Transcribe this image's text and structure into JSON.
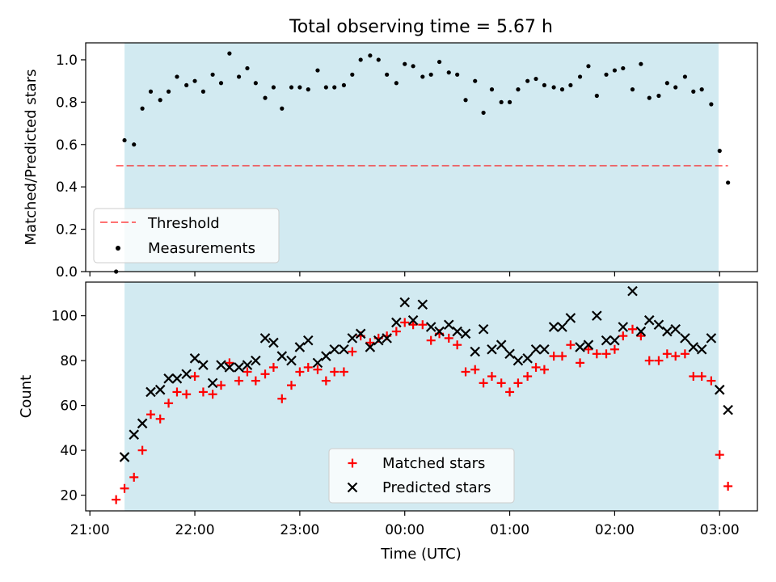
{
  "figure": {
    "title": "Total observing time = 5.67 h"
  },
  "colors": {
    "shade": "#add8e6",
    "threshold": "#ff0000",
    "measurement": "#000000",
    "matched": "#ff0000",
    "predicted": "#000000"
  },
  "chart_data": [
    {
      "type": "scatter",
      "name": "ratio-panel",
      "ylabel": "Matched/Predicted stars",
      "ylim": [
        0,
        1.08
      ],
      "yticks": [
        0.0,
        0.2,
        0.4,
        0.6,
        0.8,
        1.0
      ],
      "ytick_labels": [
        "0.0",
        "0.2",
        "0.4",
        "0.6",
        "0.8",
        "1.0"
      ],
      "xlim_hours": [
        20.96,
        27.36
      ],
      "shaded_span_hours": [
        21.33,
        26.99
      ],
      "threshold": {
        "y": 0.5,
        "x_range_hours": [
          21.25,
          27.08
        ],
        "style": "dashed"
      },
      "legend": {
        "position": "lower-left",
        "entries": [
          "Threshold",
          "Measurements"
        ]
      },
      "series": [
        {
          "name": "Measurements",
          "x_hours": [
            21.25,
            21.33,
            21.42,
            21.5,
            21.58,
            21.67,
            21.75,
            21.83,
            21.92,
            22.0,
            22.08,
            22.17,
            22.25,
            22.33,
            22.42,
            22.5,
            22.58,
            22.67,
            22.75,
            22.83,
            22.92,
            23.0,
            23.08,
            23.17,
            23.25,
            23.33,
            23.42,
            23.5,
            23.58,
            23.67,
            23.75,
            23.83,
            23.92,
            24.0,
            24.08,
            24.17,
            24.25,
            24.33,
            24.42,
            24.5,
            24.58,
            24.67,
            24.75,
            24.83,
            24.92,
            25.0,
            25.08,
            25.17,
            25.25,
            25.33,
            25.42,
            25.5,
            25.58,
            25.67,
            25.75,
            25.83,
            25.92,
            26.0,
            26.08,
            26.17,
            26.25,
            26.33,
            26.42,
            26.5,
            26.58,
            26.67,
            26.75,
            26.83,
            26.92,
            27.0,
            27.08
          ],
          "y": [
            0.0,
            0.62,
            0.6,
            0.77,
            0.85,
            0.81,
            0.85,
            0.92,
            0.88,
            0.9,
            0.85,
            0.93,
            0.89,
            1.03,
            0.92,
            0.96,
            0.89,
            0.82,
            0.87,
            0.77,
            0.87,
            0.87,
            0.86,
            0.95,
            0.87,
            0.87,
            0.88,
            0.93,
            1.0,
            1.02,
            1.0,
            0.93,
            0.89,
            0.98,
            0.97,
            0.92,
            0.93,
            0.99,
            0.94,
            0.93,
            0.81,
            0.9,
            0.75,
            0.86,
            0.8,
            0.8,
            0.86,
            0.9,
            0.91,
            0.88,
            0.87,
            0.86,
            0.88,
            0.92,
            0.97,
            0.83,
            0.93,
            0.95,
            0.96,
            0.86,
            0.98,
            0.82,
            0.83,
            0.89,
            0.87,
            0.92,
            0.85,
            0.86,
            0.79,
            0.57,
            0.42
          ]
        }
      ]
    },
    {
      "type": "scatter",
      "name": "count-panel",
      "xlabel": "Time (UTC)",
      "ylabel": "Count",
      "ylim": [
        13,
        115
      ],
      "yticks": [
        20,
        40,
        60,
        80,
        100
      ],
      "ytick_labels": [
        "20",
        "40",
        "60",
        "80",
        "100"
      ],
      "xlim_hours": [
        20.96,
        27.36
      ],
      "xticks_hours": [
        21,
        22,
        23,
        24,
        25,
        26,
        27
      ],
      "xtick_labels": [
        "21:00",
        "22:00",
        "23:00",
        "00:00",
        "01:00",
        "02:00",
        "03:00"
      ],
      "shaded_span_hours": [
        21.33,
        26.99
      ],
      "legend": {
        "position": "lower-center",
        "entries": [
          "Matched stars",
          "Predicted stars"
        ]
      },
      "series": [
        {
          "name": "Matched stars",
          "marker": "+",
          "x_hours": [
            21.25,
            21.33,
            21.42,
            21.5,
            21.58,
            21.67,
            21.75,
            21.83,
            21.92,
            22.0,
            22.08,
            22.17,
            22.25,
            22.33,
            22.42,
            22.5,
            22.58,
            22.67,
            22.75,
            22.83,
            22.92,
            23.0,
            23.08,
            23.17,
            23.25,
            23.33,
            23.42,
            23.5,
            23.58,
            23.67,
            23.75,
            23.83,
            23.92,
            24.0,
            24.08,
            24.17,
            24.25,
            24.33,
            24.42,
            24.5,
            24.58,
            24.67,
            24.75,
            24.83,
            24.92,
            25.0,
            25.08,
            25.17,
            25.25,
            25.33,
            25.42,
            25.5,
            25.58,
            25.67,
            25.75,
            25.83,
            25.92,
            26.0,
            26.08,
            26.17,
            26.25,
            26.33,
            26.42,
            26.5,
            26.58,
            26.67,
            26.75,
            26.83,
            26.92,
            27.0,
            27.08
          ],
          "y": [
            18,
            23,
            28,
            40,
            56,
            54,
            61,
            66,
            65,
            73,
            66,
            65,
            69,
            79,
            71,
            75,
            71,
            74,
            77,
            63,
            69,
            75,
            77,
            76,
            71,
            75,
            75,
            84,
            91,
            88,
            90,
            91,
            93,
            97,
            96,
            96,
            89,
            92,
            90,
            87,
            75,
            76,
            70,
            73,
            70,
            66,
            70,
            73,
            77,
            76,
            82,
            82,
            87,
            79,
            85,
            83,
            83,
            85,
            91,
            94,
            91,
            80,
            80,
            83,
            82,
            83,
            73,
            73,
            71,
            38,
            24
          ]
        },
        {
          "name": "Predicted stars",
          "marker": "x",
          "x_hours": [
            21.33,
            21.42,
            21.5,
            21.58,
            21.67,
            21.75,
            21.83,
            21.92,
            22.0,
            22.08,
            22.17,
            22.25,
            22.33,
            22.42,
            22.5,
            22.58,
            22.67,
            22.75,
            22.83,
            22.92,
            23.0,
            23.08,
            23.17,
            23.25,
            23.33,
            23.42,
            23.5,
            23.58,
            23.67,
            23.75,
            23.83,
            23.92,
            24.0,
            24.08,
            24.17,
            24.25,
            24.33,
            24.42,
            24.5,
            24.58,
            24.67,
            24.75,
            24.83,
            24.92,
            25.0,
            25.08,
            25.17,
            25.25,
            25.33,
            25.42,
            25.5,
            25.58,
            25.67,
            25.75,
            25.83,
            25.92,
            26.0,
            26.08,
            26.17,
            26.25,
            26.33,
            26.42,
            26.5,
            26.58,
            26.67,
            26.75,
            26.83,
            26.92,
            27.0,
            27.08
          ],
          "y": [
            37,
            47,
            52,
            66,
            67,
            72,
            72,
            74,
            81,
            78,
            70,
            78,
            77,
            77,
            78,
            80,
            90,
            88,
            82,
            80,
            86,
            89,
            79,
            82,
            85,
            85,
            90,
            92,
            86,
            89,
            90,
            97,
            106,
            98,
            105,
            95,
            93,
            96,
            93,
            92,
            84,
            94,
            85,
            87,
            83,
            80,
            81,
            85,
            85,
            95,
            95,
            99,
            86,
            87,
            100,
            89,
            89,
            95,
            111,
            93,
            98,
            96,
            93,
            94,
            90,
            86,
            85,
            90,
            67,
            58
          ]
        }
      ]
    }
  ]
}
